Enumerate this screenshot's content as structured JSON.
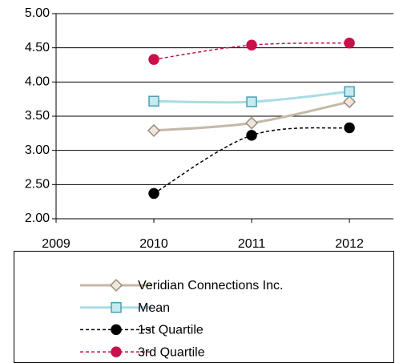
{
  "chart_data": {
    "type": "line",
    "x": [
      2010,
      2011,
      2012
    ],
    "xlim": [
      2009,
      2012.45
    ],
    "xticks": [
      2009,
      2010,
      2011,
      2012
    ],
    "ylim": [
      2,
      5
    ],
    "yticks": [
      {
        "value": 2,
        "label": "2.00"
      },
      {
        "value": 2.5,
        "label": "2.50"
      },
      {
        "value": 3,
        "label": "3.00"
      },
      {
        "value": 3.5,
        "label": "3.50"
      },
      {
        "value": 4,
        "label": "4.00"
      },
      {
        "value": 4.5,
        "label": "4.50"
      },
      {
        "value": 5,
        "label": "5.00"
      }
    ],
    "grid": true,
    "smooth": true,
    "legend": "bottom",
    "series": [
      {
        "name": "Veridian Connections Inc.",
        "color": "#c4b9a8",
        "marker": "diamond",
        "dashed": false,
        "values": [
          3.29,
          3.4,
          3.71
        ]
      },
      {
        "name": "Mean",
        "color": "#a8dce6",
        "marker": "square",
        "dashed": false,
        "values": [
          3.72,
          3.71,
          3.86
        ]
      },
      {
        "name": "1st Quartile",
        "color": "#000000",
        "marker": "circle",
        "dashed": true,
        "values": [
          2.37,
          3.22,
          3.33
        ]
      },
      {
        "name": "3rd Quartile",
        "color": "#c8104a",
        "marker": "circle",
        "dashed": true,
        "values": [
          4.33,
          4.54,
          4.57
        ]
      }
    ]
  }
}
